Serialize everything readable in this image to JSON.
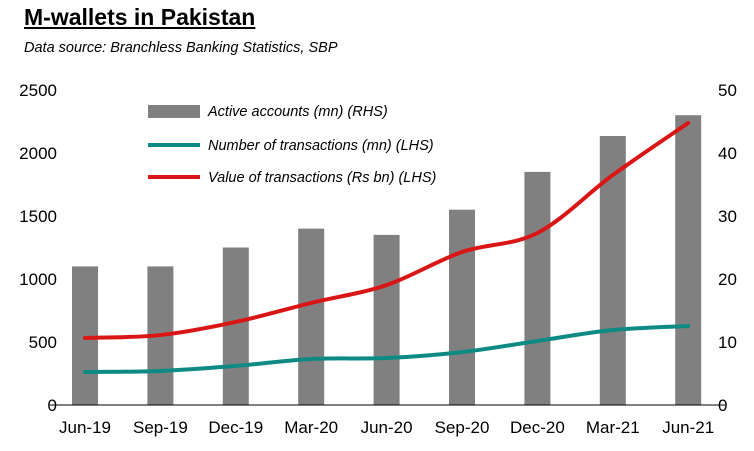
{
  "chart_data": {
    "type": "bar+line",
    "title": "M-wallets in Pakistan",
    "subtitle": "Data source: Branchless Banking Statistics, SBP",
    "categories": [
      "Jun-19",
      "Sep-19",
      "Dec-19",
      "Mar-20",
      "Jun-20",
      "Sep-20",
      "Dec-20",
      "Mar-21",
      "Jun-21"
    ],
    "left_axis": {
      "ylim": [
        0,
        2500
      ],
      "ticks": [
        0,
        500,
        1000,
        1500,
        2000,
        2500
      ]
    },
    "right_axis": {
      "ylim": [
        0,
        50
      ],
      "ticks": [
        0,
        10,
        20,
        30,
        40,
        50
      ]
    },
    "grid": false,
    "legend_position": "top-left",
    "series": [
      {
        "name": "Active accounts (mn) (RHS)",
        "type": "bar",
        "axis": "right",
        "color": "#808080",
        "values": [
          22,
          22,
          25,
          28,
          27,
          31,
          37,
          42.7,
          46
        ]
      },
      {
        "name": "Number of transactions (mn) (LHS)",
        "type": "line",
        "axis": "left",
        "color": "#0e8a85",
        "values": [
          262,
          270,
          310,
          365,
          373,
          420,
          508,
          595,
          627
        ]
      },
      {
        "name": "Value of transactions (Rs bn) (LHS)",
        "type": "line",
        "axis": "left",
        "color": "#d91515",
        "values": [
          532,
          555,
          659,
          810,
          952,
          1214,
          1365,
          1825,
          2238
        ]
      }
    ]
  }
}
